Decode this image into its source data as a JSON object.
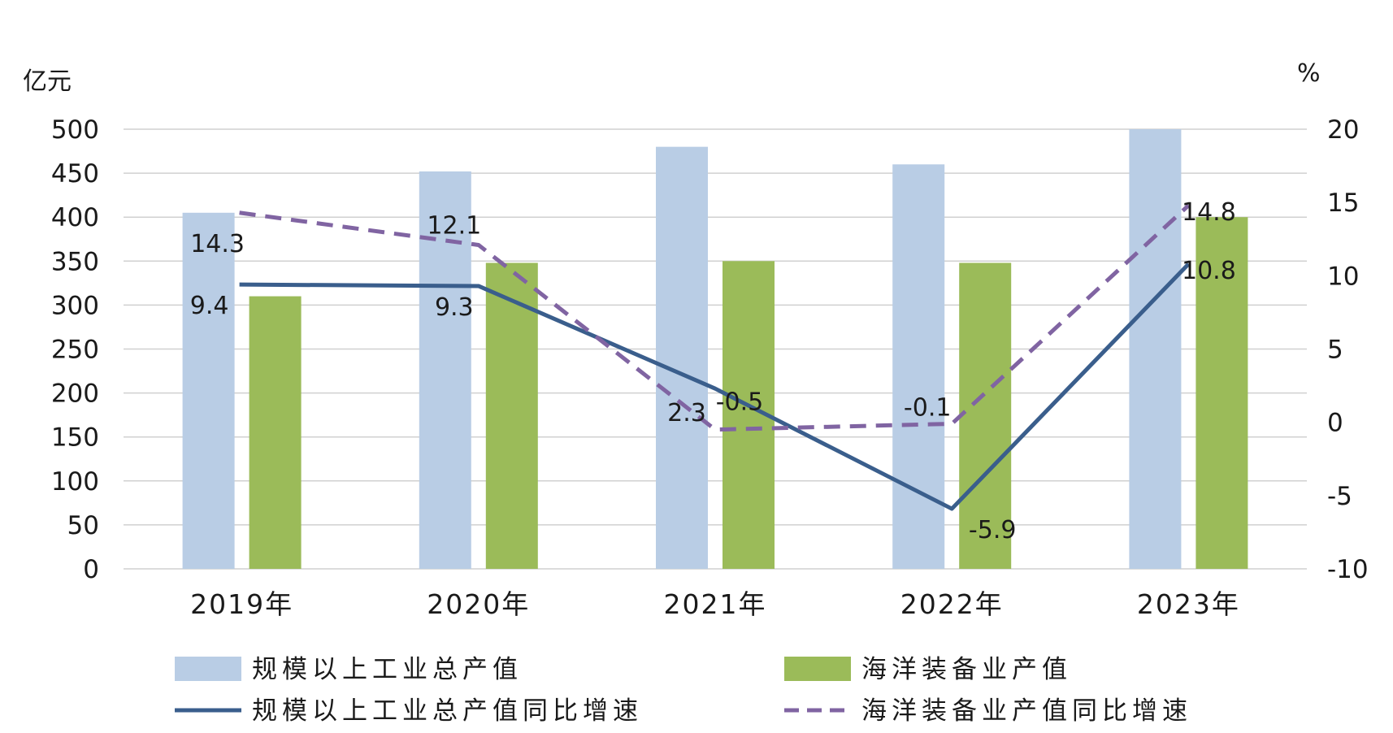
{
  "chart_data": {
    "type": "bar",
    "categories": [
      "2019年",
      "2020年",
      "2021年",
      "2022年",
      "2023年"
    ],
    "y_left": {
      "unit": "亿元",
      "range": [
        0,
        500
      ],
      "ticks": [
        0,
        50,
        100,
        150,
        200,
        250,
        300,
        350,
        400,
        450,
        500
      ]
    },
    "y_right": {
      "unit": "%",
      "range": [
        -10,
        20
      ],
      "ticks": [
        -10,
        -5,
        0,
        5,
        10,
        15,
        20
      ]
    },
    "grid": true,
    "legend": "bottom",
    "bar_series": [
      {
        "name": "规模以上工业总产值",
        "color": "#b9cde5",
        "values": [
          405,
          452,
          480,
          460,
          500
        ]
      },
      {
        "name": "海洋装备业产值",
        "color": "#9bbb59",
        "values": [
          310,
          348,
          350,
          348,
          400
        ]
      }
    ],
    "line_series": [
      {
        "name": "规模以上工业总产值同比增速",
        "color": "#3a5e8c",
        "dash": false,
        "values": [
          9.4,
          9.3,
          2.3,
          -5.9,
          10.8
        ],
        "labels": [
          "9.4",
          "9.3",
          "2.3",
          "-5.9",
          "10.8"
        ]
      },
      {
        "name": "海洋装备业产值同比增速",
        "color": "#8064a2",
        "dash": true,
        "values": [
          14.3,
          12.1,
          -0.5,
          -0.1,
          14.8
        ],
        "labels": [
          "14.3",
          "12.1",
          "-0.5",
          "-0.1",
          "14.8"
        ]
      }
    ]
  }
}
